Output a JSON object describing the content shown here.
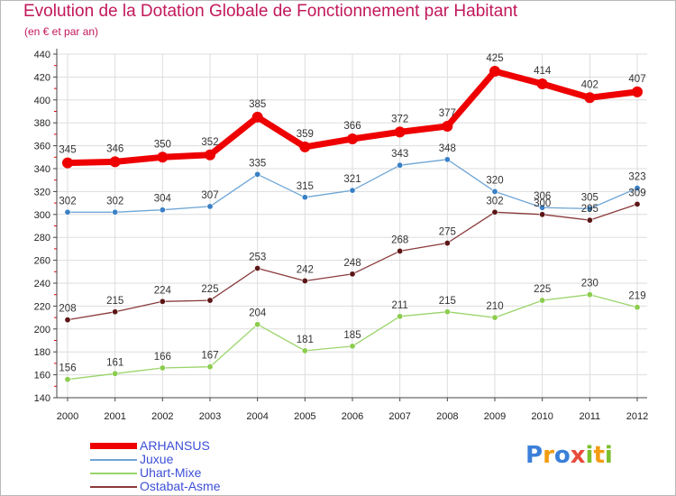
{
  "header": {
    "title": "Evolution de la Dotation Globale de Fonctionnement par Habitant",
    "subtitle": "(en € et par an)"
  },
  "colors": {
    "title": "#c2185b",
    "axis": "#444444",
    "grid": "#dddddd",
    "legend_text": "#3d4fd6"
  },
  "logo": {
    "letters": [
      {
        "char": "P",
        "color": "#3b7fd9"
      },
      {
        "char": "r",
        "color": "#f39c12"
      },
      {
        "char": "o",
        "color": "#3b7fd9"
      },
      {
        "char": "x",
        "color": "#e74c3c"
      },
      {
        "char": "i",
        "color": "#7cbf2d"
      },
      {
        "char": "t",
        "color": "#f39c12"
      },
      {
        "char": "i",
        "color": "#7cbf2d"
      }
    ]
  },
  "chart_data": {
    "type": "line",
    "title": "Evolution de la Dotation Globale de Fonctionnement par Habitant",
    "subtitle": "(en € et par an)",
    "x": [
      "2000",
      "2001",
      "2002",
      "2003",
      "2004",
      "2005",
      "2006",
      "2007",
      "2008",
      "2009",
      "2010",
      "2011",
      "2012"
    ],
    "ylim": [
      140,
      440
    ],
    "yticks": [
      140,
      160,
      180,
      200,
      220,
      240,
      260,
      280,
      300,
      320,
      340,
      360,
      380,
      400,
      420,
      440
    ],
    "grid": true,
    "legend_position": "bottom-left",
    "series": [
      {
        "name": "ARHANSUS",
        "color": "#ee0000",
        "marker": "#ee0000",
        "width": 7,
        "radius": 6,
        "values": [
          345,
          346,
          350,
          352,
          385,
          359,
          366,
          372,
          377,
          425,
          414,
          402,
          407
        ]
      },
      {
        "name": "Juxue",
        "color": "#6ea6d6",
        "marker": "#3a80c6",
        "width": 1.3,
        "radius": 3.2,
        "values": [
          302,
          302,
          304,
          307,
          335,
          315,
          321,
          343,
          348,
          320,
          306,
          305,
          323
        ]
      },
      {
        "name": "Uhart-Mixe",
        "color": "#9ad46a",
        "marker": "#8ccc4e",
        "width": 1.3,
        "radius": 3.2,
        "values": [
          156,
          161,
          166,
          167,
          204,
          181,
          185,
          211,
          215,
          210,
          225,
          230,
          219
        ]
      },
      {
        "name": "Ostabat-Asme",
        "color": "#8a3a3a",
        "marker": "#5b1616",
        "width": 1.3,
        "radius": 3.2,
        "values": [
          208,
          215,
          224,
          225,
          253,
          242,
          248,
          268,
          275,
          302,
          300,
          295,
          309
        ]
      }
    ]
  }
}
